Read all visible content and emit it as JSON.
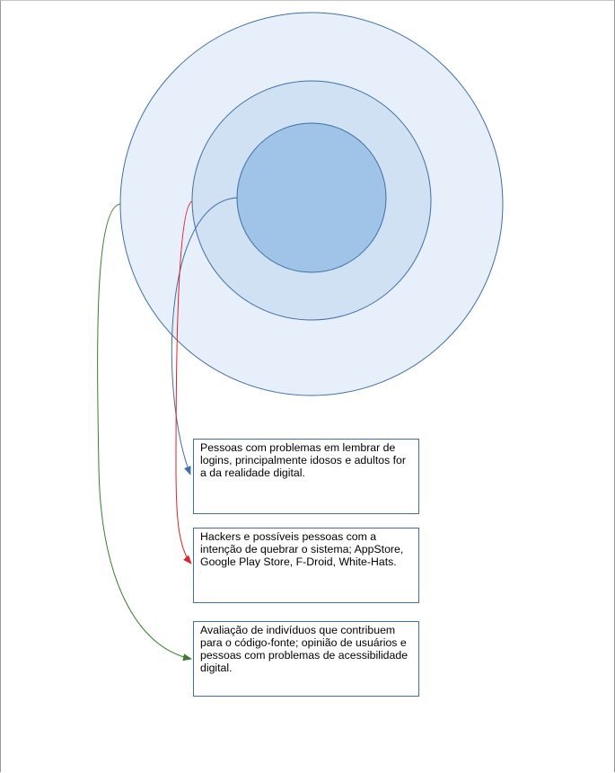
{
  "diagram": {
    "colors": {
      "outer_fill": "#e7f0fa",
      "middle_fill": "#cfe1f3",
      "inner_fill": "#9fc4e8",
      "circle_stroke": "#3f6fa6",
      "box_border": "#3f6fa6",
      "connector_blue": "#3f6fa6",
      "connector_red": "#e0202a",
      "connector_green": "#3a7d2c"
    },
    "boxes": [
      {
        "text": "Pessoas com problemas em lembrar de logins, principalmente idosos e adultos for a da realidade digital."
      },
      {
        "text": "Hackers e possíveis pessoas com a intenção de quebrar o sistema; AppStore, Google Play Store, F-Droid, White-Hats."
      },
      {
        "text": "Avaliação de indivíduos que contribuem para o código-fonte; opinião de usuários e pessoas com problemas de acessibilidade digital."
      }
    ]
  }
}
